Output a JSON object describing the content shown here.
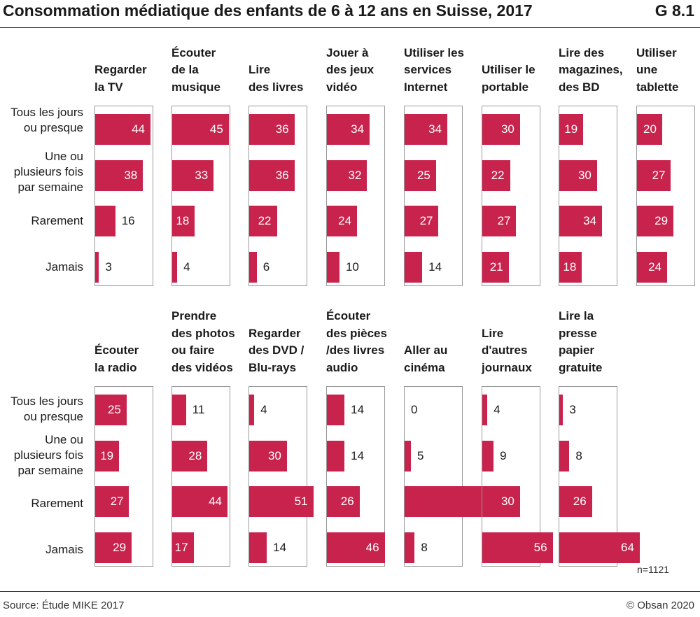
{
  "header": {
    "title": "Consommation médiatique des enfants de 6 à 12 ans en Suisse, 2017",
    "code": "G 8.1"
  },
  "footer": {
    "source": "Source: Étude MIKE 2017",
    "copyright": "© Obsan 2020",
    "note": "n=1121"
  },
  "colors": {
    "bar": "#c8234d",
    "frame": "#999999",
    "rule": "#333333"
  },
  "chart_data": {
    "type": "bar",
    "orientation": "horizontal",
    "title": "Consommation médiatique des enfants de 6 à 12 ans en Suisse, 2017",
    "xlim": [
      0,
      100
    ],
    "row_labels": [
      [
        "Tous les jours",
        "ou presque"
      ],
      [
        "Une ou",
        "plusieurs fois",
        "par semaine"
      ],
      [
        "Rarement"
      ],
      [
        "Jamais"
      ]
    ],
    "categories": [
      "Tous les jours ou presque",
      "Une ou plusieurs fois par semaine",
      "Rarement",
      "Jamais"
    ],
    "panels": [
      {
        "title": [
          "",
          "Regarder",
          "la TV"
        ],
        "values": [
          44,
          38,
          16,
          3
        ]
      },
      {
        "title": [
          "Écouter",
          "de la",
          "musique"
        ],
        "values": [
          45,
          33,
          18,
          4
        ]
      },
      {
        "title": [
          "",
          "Lire",
          "des livres"
        ],
        "values": [
          36,
          36,
          22,
          6
        ]
      },
      {
        "title": [
          "Jouer à",
          "des jeux",
          "vidéo"
        ],
        "values": [
          34,
          32,
          24,
          10
        ]
      },
      {
        "title": [
          "Utiliser les",
          "services",
          "Internet"
        ],
        "values": [
          34,
          25,
          27,
          14
        ]
      },
      {
        "title": [
          "",
          "Utiliser le",
          "portable"
        ],
        "values": [
          30,
          22,
          27,
          21
        ]
      },
      {
        "title": [
          "Lire des",
          "magazines,",
          "des BD"
        ],
        "values": [
          19,
          30,
          34,
          18
        ]
      },
      {
        "title": [
          "Utiliser",
          "une",
          "tablette"
        ],
        "values": [
          20,
          27,
          29,
          24
        ]
      },
      {
        "title": [
          "",
          "",
          "Écouter",
          "la radio"
        ],
        "values": [
          25,
          19,
          27,
          29
        ]
      },
      {
        "title": [
          "Prendre",
          "des photos",
          "ou faire",
          "des vidéos"
        ],
        "values": [
          11,
          28,
          44,
          17
        ]
      },
      {
        "title": [
          "",
          "Regarder",
          "des DVD /",
          "Blu-rays"
        ],
        "values": [
          4,
          30,
          51,
          14
        ]
      },
      {
        "title": [
          "Écouter",
          "des pièces",
          "/des livres",
          "audio"
        ],
        "values": [
          14,
          14,
          26,
          46
        ]
      },
      {
        "title": [
          "",
          "",
          "Aller au",
          "cinéma"
        ],
        "values": [
          0,
          5,
          86,
          8
        ]
      },
      {
        "title": [
          "",
          "Lire",
          "d'autres",
          "journaux"
        ],
        "values": [
          4,
          9,
          30,
          56
        ]
      },
      {
        "title": [
          "Lire la",
          "presse",
          "papier",
          "gratuite"
        ],
        "values": [
          3,
          8,
          26,
          64
        ]
      }
    ]
  }
}
